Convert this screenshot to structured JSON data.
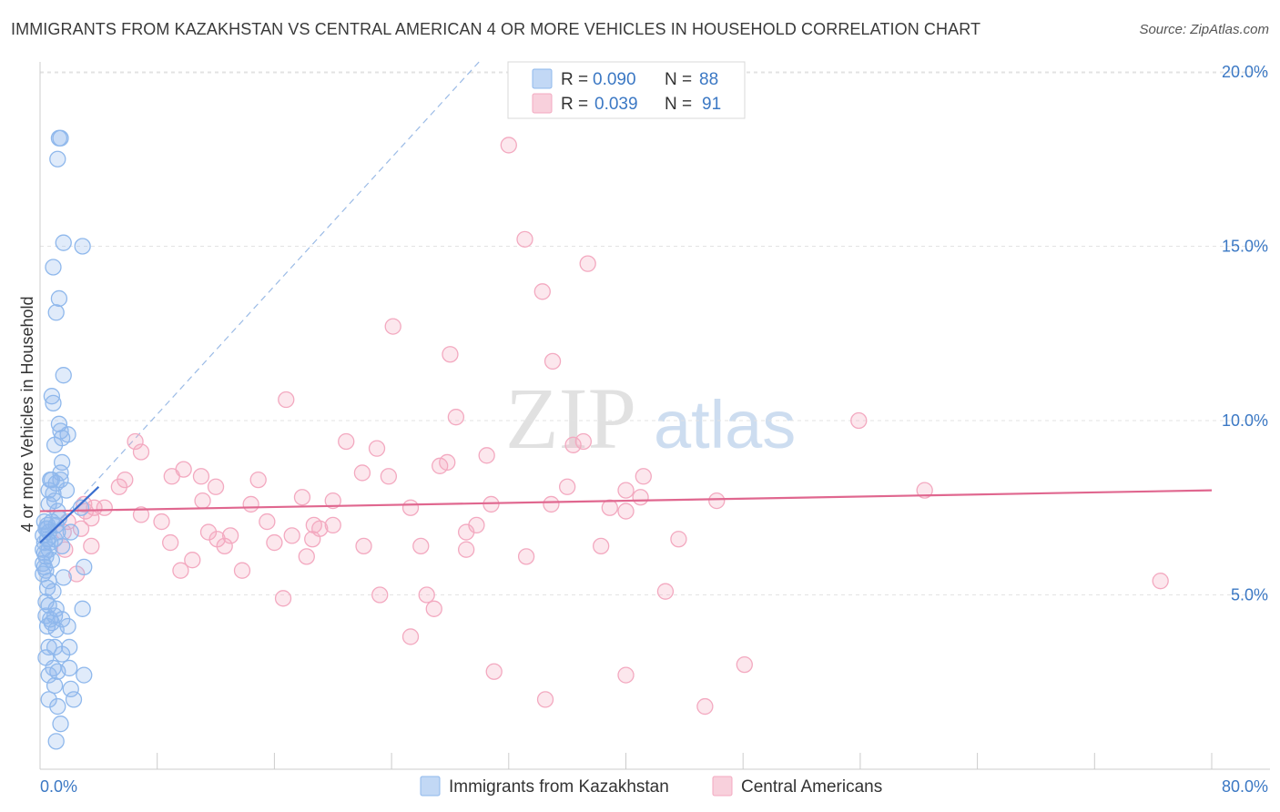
{
  "title": "IMMIGRANTS FROM KAZAKHSTAN VS CENTRAL AMERICAN 4 OR MORE VEHICLES IN HOUSEHOLD CORRELATION CHART",
  "source": "Source: ZipAtlas.com",
  "watermark": {
    "zip": "ZIP",
    "atlas": "atlas"
  },
  "colors": {
    "series1": "#8fb8ec",
    "series1_line": "#3a6fcf",
    "series2": "#f3a9c0",
    "series2_line": "#e0678f",
    "axis_text": "#3b78c4",
    "grid": "#e3e3e3"
  },
  "legend": {
    "r_label": "R =",
    "n_label": "N =",
    "rows": [
      {
        "r": "0.090",
        "n": "88"
      },
      {
        "r": "0.039",
        "n": "91"
      }
    ]
  },
  "chart_data": {
    "type": "scatter",
    "title": "IMMIGRANTS FROM KAZAKHSTAN VS CENTRAL AMERICAN 4 OR MORE VEHICLES IN HOUSEHOLD CORRELATION CHART",
    "xlabel": "",
    "ylabel": "4 or more Vehicles in Household",
    "xlim": [
      0,
      80
    ],
    "ylim": [
      0,
      20.5
    ],
    "x_tick_labels": [
      "0.0%",
      "80.0%"
    ],
    "y_ticks": [
      5,
      10,
      15,
      20
    ],
    "y_tick_labels": [
      "5.0%",
      "10.0%",
      "15.0%",
      "20.0%"
    ],
    "grid": true,
    "legend_position": "top-center",
    "series": [
      {
        "name": "Immigrants from Kazakhstan",
        "r": 0.09,
        "n": 88,
        "trend": {
          "x": [
            0,
            4.0
          ],
          "y": [
            6.5,
            8.1
          ]
        },
        "extended_trend": {
          "x": [
            0,
            30.0
          ],
          "y": [
            6.5,
            20.3
          ]
        },
        "points": [
          [
            1.4,
            18.1
          ],
          [
            1.3,
            18.1
          ],
          [
            1.2,
            17.5
          ],
          [
            1.6,
            15.1
          ],
          [
            2.9,
            15.0
          ],
          [
            0.9,
            14.4
          ],
          [
            1.3,
            13.5
          ],
          [
            1.1,
            13.1
          ],
          [
            1.6,
            11.3
          ],
          [
            0.8,
            10.7
          ],
          [
            0.9,
            10.5
          ],
          [
            1.3,
            9.9
          ],
          [
            1.4,
            9.7
          ],
          [
            1.9,
            9.6
          ],
          [
            1.5,
            9.5
          ],
          [
            1.0,
            9.3
          ],
          [
            1.5,
            8.8
          ],
          [
            1.4,
            8.5
          ],
          [
            0.7,
            8.3
          ],
          [
            0.8,
            8.3
          ],
          [
            1.4,
            8.3
          ],
          [
            1.1,
            8.2
          ],
          [
            0.6,
            8.0
          ],
          [
            0.9,
            7.9
          ],
          [
            1.8,
            8.0
          ],
          [
            1.0,
            7.7
          ],
          [
            0.6,
            7.6
          ],
          [
            1.2,
            7.4
          ],
          [
            2.8,
            7.5
          ],
          [
            0.3,
            7.1
          ],
          [
            0.5,
            7.0
          ],
          [
            0.8,
            7.1
          ],
          [
            1.1,
            7.0
          ],
          [
            0.4,
            6.9
          ],
          [
            0.6,
            6.8
          ],
          [
            1.2,
            6.8
          ],
          [
            0.2,
            6.7
          ],
          [
            0.5,
            6.6
          ],
          [
            2.1,
            6.8
          ],
          [
            0.3,
            6.5
          ],
          [
            0.7,
            6.5
          ],
          [
            1.0,
            6.6
          ],
          [
            1.5,
            6.4
          ],
          [
            0.2,
            6.3
          ],
          [
            0.6,
            6.3
          ],
          [
            0.4,
            6.1
          ],
          [
            0.8,
            6.0
          ],
          [
            0.2,
            5.9
          ],
          [
            0.3,
            5.8
          ],
          [
            0.4,
            5.7
          ],
          [
            0.2,
            5.6
          ],
          [
            0.6,
            5.4
          ],
          [
            1.6,
            5.5
          ],
          [
            3.0,
            5.8
          ],
          [
            0.5,
            5.2
          ],
          [
            0.4,
            4.8
          ],
          [
            0.6,
            4.7
          ],
          [
            1.1,
            4.6
          ],
          [
            2.9,
            4.6
          ],
          [
            0.4,
            4.4
          ],
          [
            0.7,
            4.3
          ],
          [
            1.0,
            4.4
          ],
          [
            1.5,
            4.3
          ],
          [
            0.8,
            4.2
          ],
          [
            0.5,
            4.1
          ],
          [
            1.1,
            4.0
          ],
          [
            1.9,
            4.1
          ],
          [
            0.6,
            3.5
          ],
          [
            1.0,
            3.5
          ],
          [
            1.5,
            3.3
          ],
          [
            2.0,
            3.5
          ],
          [
            0.4,
            3.2
          ],
          [
            0.9,
            2.9
          ],
          [
            1.2,
            2.8
          ],
          [
            2.0,
            2.9
          ],
          [
            0.6,
            2.7
          ],
          [
            3.0,
            2.7
          ],
          [
            1.0,
            2.4
          ],
          [
            2.1,
            2.3
          ],
          [
            0.6,
            2.0
          ],
          [
            2.3,
            2.0
          ],
          [
            1.2,
            1.8
          ],
          [
            1.4,
            1.3
          ],
          [
            1.1,
            0.8
          ],
          [
            0.3,
            6.2
          ],
          [
            0.5,
            6.9
          ],
          [
            0.9,
            5.1
          ],
          [
            1.3,
            7.2
          ]
        ]
      },
      {
        "name": "Central Americans",
        "r": 0.039,
        "n": 91,
        "trend": {
          "x": [
            0,
            80
          ],
          "y": [
            7.4,
            8.0
          ]
        },
        "points": [
          [
            32.0,
            17.9
          ],
          [
            33.1,
            15.2
          ],
          [
            37.4,
            14.5
          ],
          [
            34.3,
            13.7
          ],
          [
            24.1,
            12.7
          ],
          [
            28.0,
            11.9
          ],
          [
            35.0,
            11.7
          ],
          [
            16.8,
            10.6
          ],
          [
            28.4,
            10.1
          ],
          [
            55.9,
            10.0
          ],
          [
            6.5,
            9.4
          ],
          [
            20.9,
            9.4
          ],
          [
            23.0,
            9.2
          ],
          [
            6.9,
            9.1
          ],
          [
            36.4,
            9.3
          ],
          [
            37.1,
            9.4
          ],
          [
            30.5,
            9.0
          ],
          [
            27.3,
            8.7
          ],
          [
            27.8,
            8.8
          ],
          [
            9.8,
            8.6
          ],
          [
            11.0,
            8.4
          ],
          [
            22.0,
            8.5
          ],
          [
            23.8,
            8.4
          ],
          [
            9.0,
            8.4
          ],
          [
            5.8,
            8.3
          ],
          [
            14.9,
            8.3
          ],
          [
            41.2,
            8.4
          ],
          [
            5.4,
            8.1
          ],
          [
            12.0,
            8.1
          ],
          [
            36.0,
            8.1
          ],
          [
            40.0,
            8.0
          ],
          [
            41.0,
            7.8
          ],
          [
            46.2,
            7.7
          ],
          [
            17.9,
            7.8
          ],
          [
            20.0,
            7.7
          ],
          [
            30.8,
            7.6
          ],
          [
            34.9,
            7.6
          ],
          [
            3.0,
            7.6
          ],
          [
            3.7,
            7.5
          ],
          [
            4.4,
            7.5
          ],
          [
            14.4,
            7.6
          ],
          [
            11.1,
            7.7
          ],
          [
            25.3,
            7.5
          ],
          [
            38.9,
            7.5
          ],
          [
            40.0,
            7.4
          ],
          [
            3.1,
            7.4
          ],
          [
            3.5,
            7.2
          ],
          [
            6.9,
            7.3
          ],
          [
            8.3,
            7.1
          ],
          [
            1.9,
            7.1
          ],
          [
            15.5,
            7.1
          ],
          [
            18.7,
            7.0
          ],
          [
            20.0,
            7.0
          ],
          [
            19.1,
            6.9
          ],
          [
            29.8,
            7.0
          ],
          [
            2.8,
            6.9
          ],
          [
            1.6,
            6.8
          ],
          [
            11.5,
            6.8
          ],
          [
            13.0,
            6.7
          ],
          [
            29.1,
            6.8
          ],
          [
            17.2,
            6.7
          ],
          [
            18.6,
            6.6
          ],
          [
            12.1,
            6.6
          ],
          [
            3.5,
            6.4
          ],
          [
            8.9,
            6.5
          ],
          [
            12.6,
            6.4
          ],
          [
            16.0,
            6.5
          ],
          [
            22.1,
            6.4
          ],
          [
            26.0,
            6.4
          ],
          [
            29.1,
            6.3
          ],
          [
            38.3,
            6.4
          ],
          [
            43.6,
            6.6
          ],
          [
            1.7,
            6.3
          ],
          [
            10.4,
            6.0
          ],
          [
            18.2,
            6.1
          ],
          [
            33.2,
            6.1
          ],
          [
            9.6,
            5.7
          ],
          [
            13.8,
            5.7
          ],
          [
            2.5,
            5.6
          ],
          [
            76.5,
            5.4
          ],
          [
            42.7,
            5.1
          ],
          [
            23.2,
            5.0
          ],
          [
            26.4,
            5.0
          ],
          [
            16.6,
            4.9
          ],
          [
            26.9,
            4.6
          ],
          [
            25.3,
            3.8
          ],
          [
            31.0,
            2.8
          ],
          [
            48.1,
            3.0
          ],
          [
            40.0,
            2.7
          ],
          [
            34.5,
            2.0
          ],
          [
            45.4,
            1.8
          ],
          [
            60.4,
            8.0
          ]
        ]
      }
    ]
  },
  "bottom_legend": [
    {
      "label": "Immigrants from Kazakhstan"
    },
    {
      "label": "Central Americans"
    }
  ]
}
